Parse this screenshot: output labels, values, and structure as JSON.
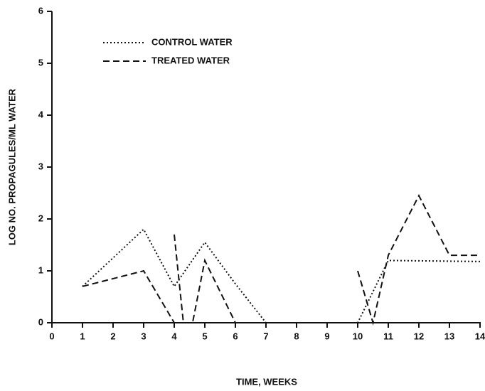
{
  "chart_data": {
    "type": "line",
    "x_label": "TIME, WEEKS",
    "y_label": "LOG NO. PROPAGULES/ML WATER",
    "xlim": [
      0,
      14
    ],
    "xticks": [
      0,
      1,
      2,
      3,
      4,
      5,
      6,
      7,
      8,
      9,
      10,
      11,
      12,
      13,
      14
    ],
    "ylim": [
      0,
      6
    ],
    "yticks": [
      0,
      1,
      2,
      3,
      4,
      5,
      6
    ],
    "legend": "upper left",
    "series": [
      {
        "name": "CONTROL WATER",
        "color": "#111111",
        "style": "dotted",
        "x": [
          1,
          3,
          4,
          5,
          6,
          7,
          10,
          11,
          14
        ],
        "values": [
          0.7,
          1.8,
          0.7,
          1.55,
          0.75,
          0,
          0,
          1.2,
          1.18
        ]
      },
      {
        "name": "TREATED WATER",
        "color": "#111111",
        "style": "dashed",
        "x": [
          1,
          2,
          3,
          4,
          4,
          4,
          4.3,
          4.6,
          5,
          6,
          8,
          10,
          10.5,
          11,
          12,
          13,
          14
        ],
        "values": [
          0.7,
          0.85,
          1.0,
          0,
          null,
          1.7,
          0,
          0,
          1.2,
          0,
          null,
          1.0,
          0,
          1.3,
          2.45,
          1.3,
          1.3
        ]
      }
    ]
  }
}
